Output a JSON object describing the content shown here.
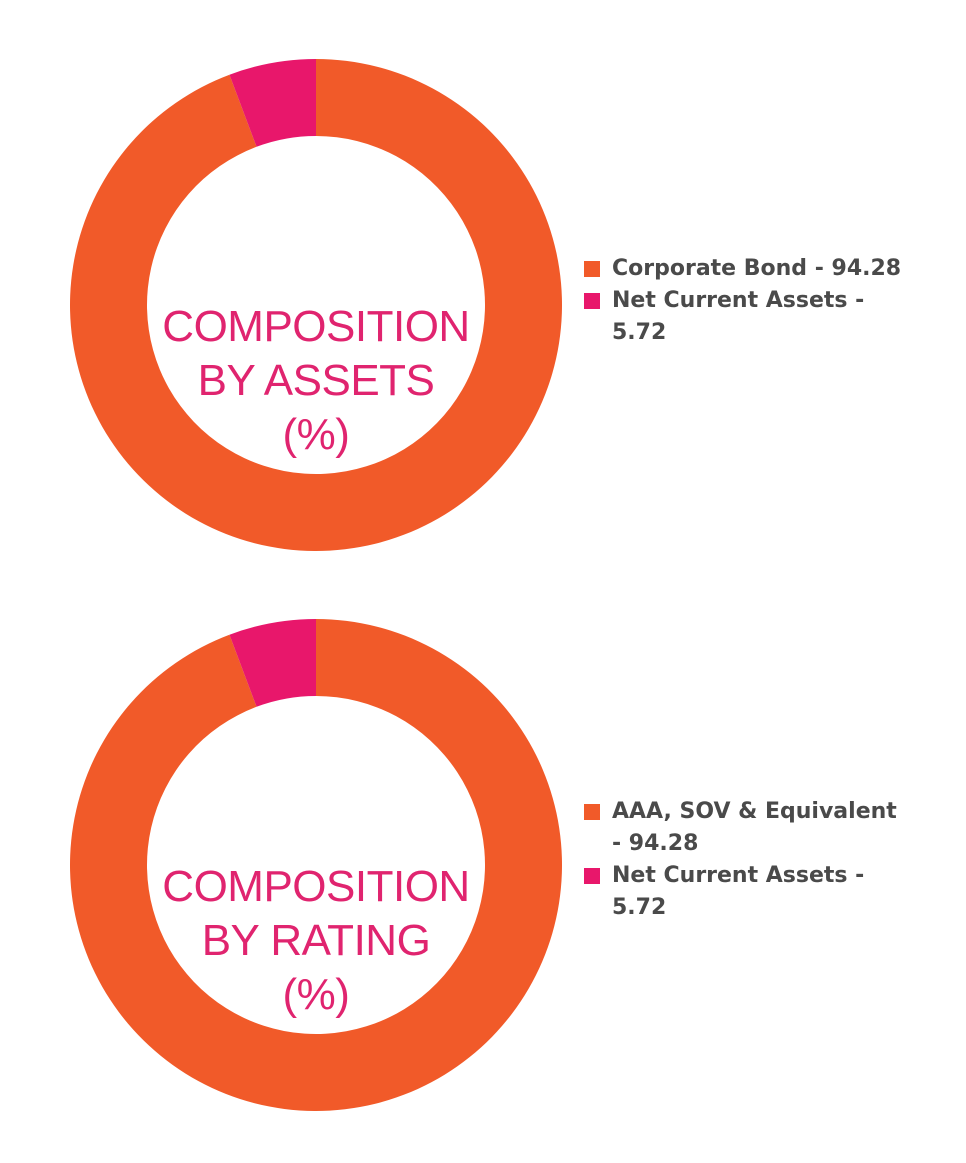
{
  "chart_data": [
    {
      "type": "pie",
      "center_label": [
        "COMPOSITION",
        "BY ASSETS",
        "(%)"
      ],
      "categories": [
        "Corporate Bond",
        "Net Current Assets"
      ],
      "values": [
        94.28,
        5.72
      ],
      "colors": [
        "#f15a29",
        "#e8176b"
      ],
      "legend_labels": [
        "Corporate Bond - 94.28",
        "Net Current Assets - 5.72"
      ],
      "legend": "right"
    },
    {
      "type": "pie",
      "center_label": [
        "COMPOSITION",
        "BY RATING",
        "(%)"
      ],
      "categories": [
        "AAA, SOV & Equivalent",
        "Net Current Assets"
      ],
      "values": [
        94.28,
        5.72
      ],
      "colors": [
        "#f15a29",
        "#e8176b"
      ],
      "legend_labels": [
        "AAA, SOV & Equivalent - 94.28",
        "Net Current Assets - 5.72"
      ],
      "legend": "right"
    }
  ]
}
